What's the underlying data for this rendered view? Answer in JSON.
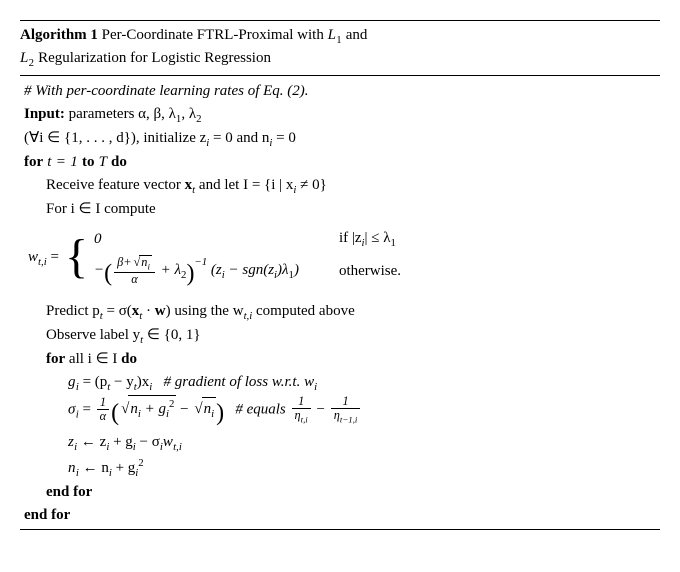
{
  "header": {
    "label": "Algorithm 1",
    "title1": "Per-Coordinate FTRL-Proximal with ",
    "title_L1": "L",
    "title_and": " and",
    "title2a": "L",
    "title2b": " Regularization for Logistic Regression"
  },
  "l1_comment": "# With per-coordinate learning rates of Eq. (2).",
  "l2_input": "Input:",
  "l2_params": " parameters α, β, λ",
  "l2_comma": ", λ",
  "l3_range": "(∀i ∈ {1, . . . , d}), initialize z",
  "l3_mid": " = 0 and n",
  "l3_end": " = 0",
  "l4_for": "for",
  "l4_range": " t = 1 ",
  "l4_to": "to",
  "l4_T": " T ",
  "l4_do": "do",
  "l5a": "Receive feature vector ",
  "l5_xt": "x",
  "l5b": " and let I = {i | x",
  "l5c": " ≠ 0}",
  "l6": "For i ∈ I compute",
  "pw_lhs": "w",
  "pw_lhs2": " = ",
  "case1_val": "0",
  "case1_cond_a": "if |z",
  "case1_cond_b": "| ≤ λ",
  "case2_open": "−",
  "case2_plus": " + λ",
  "case2_exp": "−1",
  "case2_mid_a": "(z",
  "case2_mid_b": " − sgn(z",
  "case2_mid_c": ")λ",
  "case2_mid_d": ")",
  "case2_cond": "otherwise.",
  "frac_num_b": "β+",
  "frac_num_n": "n",
  "frac_den": "α",
  "l7a": "Predict p",
  "l7b": " = σ(",
  "l7_xt": "x",
  "l7c": " · ",
  "l7_w": "w",
  "l7d": ") using the w",
  "l7e": " computed above",
  "l8a": "Observe label y",
  "l8b": " ∈ {0, 1}",
  "l9_for": "for",
  "l9_body": " all i ∈ I ",
  "l9_do": "do",
  "l10a": "g",
  "l10b": " = (p",
  "l10c": " − y",
  "l10d": ")x",
  "l10e": "   ",
  "l10_comment": "# gradient of loss w.r.t. w",
  "l11a": "σ",
  "l11b": " = ",
  "l11_oa": "1",
  "l11_ob": "α",
  "l11_sq1": "n",
  "l11_plus": " + g",
  "l11_min": " − ",
  "l11_sq2": "n",
  "l11_comment": "# equals ",
  "l11_f1n": "1",
  "l11_f1d": "η",
  "l11_minus2": " − ",
  "l11_f2n": "1",
  "l11_f2d": "η",
  "l12a": "z",
  "l12b": " ← z",
  "l12c": " + g",
  "l12d": " − σ",
  "l12e": "w",
  "l13a": "n",
  "l13b": " ← n",
  "l13c": " + g",
  "l14": "end for",
  "l15": "end for"
}
